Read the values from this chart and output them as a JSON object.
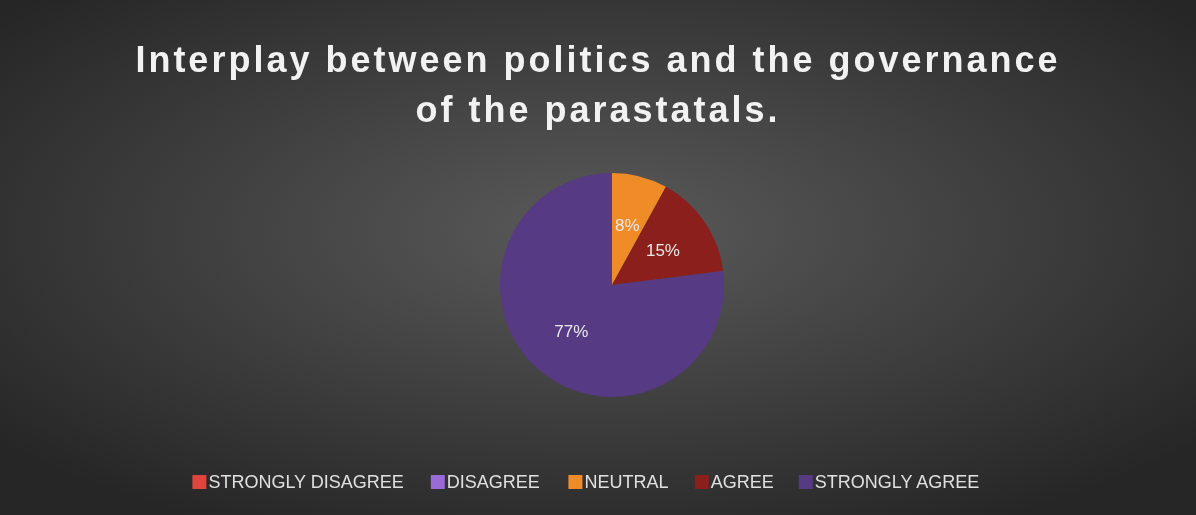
{
  "chart_data": {
    "type": "pie",
    "title": "Interplay between politics and the governance of the parastatals.",
    "categories": [
      "STRONGLY DISAGREE",
      "DISAGREE",
      "NEUTRAL",
      "AGREE",
      "STRONGLY AGREE"
    ],
    "values": [
      0,
      0,
      8,
      15,
      77
    ],
    "value_labels": [
      null,
      null,
      "8%",
      "15%",
      "77%"
    ],
    "colors": [
      "#e0443c",
      "#9a6ad6",
      "#f08c28",
      "#8a1f1c",
      "#563a84"
    ],
    "legend": "bottom"
  }
}
